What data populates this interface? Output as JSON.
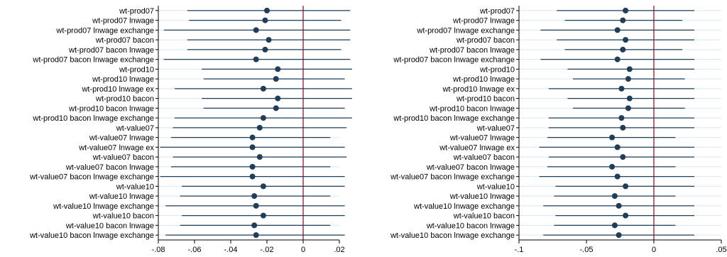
{
  "chart_data": [
    {
      "type": "coefficient-plot",
      "title": "",
      "xlabel": "",
      "ylabel": "",
      "xlim": [
        -0.08,
        0.02
      ],
      "xticks": [
        -0.08,
        -0.06,
        -0.04,
        -0.02,
        0,
        0.02
      ],
      "xtick_labels": [
        "-.08",
        "-.06",
        "-.04",
        "-.02",
        "0",
        ".02"
      ],
      "reference_line": 0,
      "colors": {
        "marker": "#1f3e5a",
        "ci": "#1f3e5a",
        "ref": "#8b1a2b",
        "grid": "#dce6ee"
      },
      "categories": [
        "wt-prod07",
        "wt-prod07 lnwage",
        "wt-prod07 lnwage exchange",
        "wt-prod07 bacon",
        "wt-prod07 bacon lnwage",
        "wt-prod07 bacon lnwage exchange",
        "wt-prod10",
        "wt-prod10 lnwage",
        "wt-prod10 lnwage ex",
        "wt-prod10 bacon",
        "wt-prod10 bacon lnwage",
        "wt-prod10 bacon lnwage exchange",
        "wt-value07",
        "wt-value07 lnwage",
        "wt-value07 lnwage ex",
        "wt-value07 bacon",
        "wt-value07 bacon lnwage",
        "wt-value07 bacon lnwage exchange",
        "wt-value10",
        "wt-value10 lnwage",
        "wt-value10 lnwage exchange",
        "wt-value10 bacon",
        "wt-value10 bacon lnwage",
        "wt-value10 bacon lnwage exchange"
      ],
      "estimates": [
        -0.02,
        -0.021,
        -0.026,
        -0.019,
        -0.021,
        -0.026,
        -0.014,
        -0.015,
        -0.022,
        -0.014,
        -0.015,
        -0.022,
        -0.024,
        -0.028,
        -0.028,
        -0.024,
        -0.028,
        -0.028,
        -0.022,
        -0.027,
        -0.026,
        -0.022,
        -0.027,
        -0.026
      ],
      "ci_low": [
        -0.064,
        -0.063,
        -0.077,
        -0.064,
        -0.064,
        -0.077,
        -0.056,
        -0.055,
        -0.071,
        -0.056,
        -0.055,
        -0.071,
        -0.072,
        -0.073,
        -0.079,
        -0.072,
        -0.073,
        -0.079,
        -0.067,
        -0.068,
        -0.076,
        -0.067,
        -0.068,
        -0.076
      ],
      "ci_high": [
        0.026,
        0.021,
        0.026,
        0.026,
        0.021,
        0.026,
        0.027,
        0.023,
        0.027,
        0.027,
        0.023,
        0.027,
        0.024,
        0.015,
        0.023,
        0.024,
        0.015,
        0.023,
        0.023,
        0.015,
        0.023,
        0.023,
        0.015,
        0.023
      ]
    },
    {
      "type": "coefficient-plot",
      "title": "",
      "xlabel": "",
      "ylabel": "",
      "xlim": [
        -0.1,
        0.05
      ],
      "xticks": [
        -0.1,
        -0.05,
        0,
        0.05
      ],
      "xtick_labels": [
        "-.1",
        "-.05",
        "0",
        ".05"
      ],
      "reference_line": 0,
      "colors": {
        "marker": "#1f3e5a",
        "ci": "#1f3e5a",
        "ref": "#8b1a2b",
        "grid": "#dce6ee"
      },
      "categories": [
        "wt-prod07",
        "wt-prod07 lnwage",
        "wt-prod07 lnwage exchange",
        "wt-prod07 bacon",
        "wt-prod07 bacon lnwage",
        "wt-prod07 bacon lnwage exchange",
        "wt-prod10",
        "wt-prod10 lnwage",
        "wt-prod10 lnwage ex",
        "wt-prod10 bacon",
        "wt-prod10 bacon lnwage",
        "wt-prod10 bacon lnwage exchange",
        "wt-value07",
        "wt-value07 lnwage",
        "wt-value07 lnwage ex",
        "wt-value07 bacon",
        "wt-value07 bacon lnwage",
        "wt-value07 bacon lnwage exchange",
        "wt-value10",
        "wt-value10 lnwage",
        "wt-value10 lnwage exchange",
        "wt-value10 bacon",
        "wt-value10 bacon lnwage",
        "wt-value10 bacon lnwage exchange"
      ],
      "estimates": [
        -0.021,
        -0.023,
        -0.027,
        -0.021,
        -0.023,
        -0.027,
        -0.018,
        -0.019,
        -0.024,
        -0.018,
        -0.019,
        -0.024,
        -0.023,
        -0.031,
        -0.027,
        -0.023,
        -0.031,
        -0.027,
        -0.021,
        -0.029,
        -0.026,
        -0.021,
        -0.029,
        -0.026
      ],
      "ci_low": [
        -0.072,
        -0.066,
        -0.084,
        -0.072,
        -0.066,
        -0.084,
        -0.064,
        -0.06,
        -0.078,
        -0.064,
        -0.06,
        -0.078,
        -0.078,
        -0.079,
        -0.085,
        -0.078,
        -0.079,
        -0.085,
        -0.073,
        -0.074,
        -0.082,
        -0.073,
        -0.074,
        -0.082
      ],
      "ci_high": [
        0.03,
        0.021,
        0.03,
        0.03,
        0.021,
        0.03,
        0.03,
        0.023,
        0.03,
        0.03,
        0.023,
        0.03,
        0.03,
        0.016,
        0.03,
        0.03,
        0.016,
        0.03,
        0.03,
        0.016,
        0.03,
        0.03,
        0.016,
        0.03
      ]
    }
  ]
}
